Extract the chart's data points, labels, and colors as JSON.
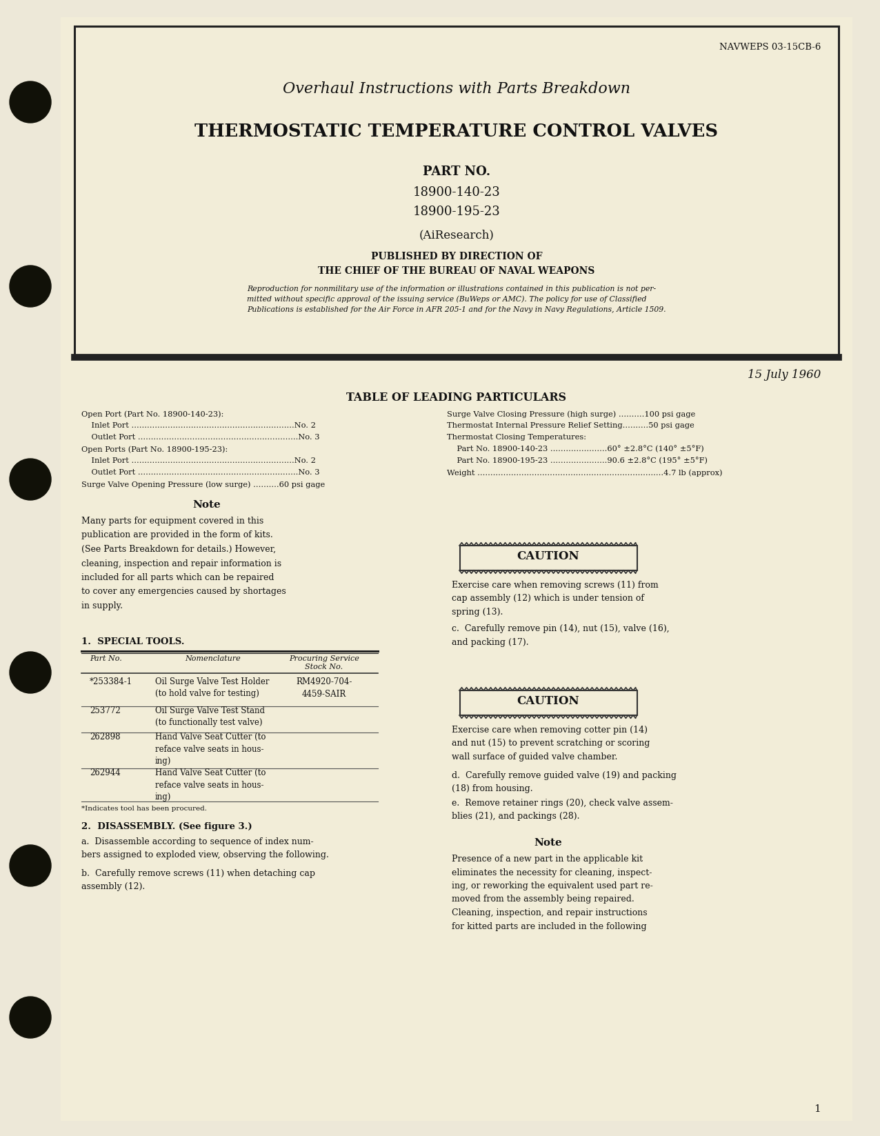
{
  "page_bg": "#ede8d8",
  "doc_bg": "#f2edd8",
  "navweps": "NAVWEPS 03-15CB-6",
  "title_line1": "Overhaul Instructions with Parts Breakdown",
  "title_line2": "THERMOSTATIC TEMPERATURE CONTROL VALVES",
  "part_no_label": "PART NO.",
  "part1": "18900-140-23",
  "part2": "18900-195-23",
  "airesearch": "(AiResearch)",
  "published_line1": "PUBLISHED BY DIRECTION OF",
  "published_line2": "THE CHIEF OF THE BUREAU OF NAVAL WEAPONS",
  "reproduction_text": "Reproduction for nonmilitary use of the information or illustrations contained in this publication is not per-\nmitted without specific approval of the issuing service (BuWeps or AMC). The policy for use of Classified\nPublications is established for the Air Force in AFR 205-1 and for the Navy in Navy Regulations, Article 1509.",
  "date": "15 July 1960",
  "table_title": "TABLE OF LEADING PARTICULARS",
  "left_particulars": [
    "Open Port (Part No. 18900-140-23):",
    "    Inlet Port ...............................................................No. 2",
    "    Outlet Port ..............................................................No. 3",
    "Open Ports (Part No. 18900-195-23):",
    "    Inlet Port ...............................................................No. 2",
    "    Outlet Port ..............................................................No. 3",
    "Surge Valve Opening Pressure (low surge) ..........60 psi gage"
  ],
  "right_particulars": [
    "Surge Valve Closing Pressure (high surge) ..........100 psi gage",
    "Thermostat Internal Pressure Relief Setting..........50 psi gage",
    "Thermostat Closing Temperatures:",
    "    Part No. 18900-140-23 ......................60° ±2.8°C (140° ±5°F)",
    "    Part No. 18900-195-23 ......................90.6 ±2.8°C (195° ±5°F)",
    "Weight ........................................................................4.7 lb (approx)"
  ],
  "note_title": "Note",
  "note_text": "Many parts for equipment covered in this\npublication are provided in the form of kits.\n(See Parts Breakdown for details.) However,\ncleaning, inspection and repair information is\nincluded for all parts which can be repaired\nto cover any emergencies caused by shortages\nin supply.",
  "special_tools_title": "1.  SPECIAL TOOLS.",
  "table_headers": [
    "Part No.",
    "Nomenclature",
    "Procuring Service\nStock No."
  ],
  "tools_data": [
    [
      "*253384-1",
      "Oil Surge Valve Test Holder\n(to hold valve for testing)",
      "RM4920-704-\n4459-SAIR"
    ],
    [
      "253772",
      "Oil Surge Valve Test Stand\n(to functionally test valve)",
      ""
    ],
    [
      "262898",
      "Hand Valve Seat Cutter (to\nreface valve seats in hous-\ning)",
      ""
    ],
    [
      "262944",
      "Hand Valve Seat Cutter (to\nreface valve seats in hous-\ning)",
      ""
    ]
  ],
  "footnote": "*Indicates tool has been procured.",
  "disassembly_title": "2.  DISASSEMBLY. (See figure 3.)",
  "disassembly_a": "a.  Disassemble according to sequence of index num-\nbers assigned to exploded view, observing the following.",
  "disassembly_b": "b.  Carefully remove screws (11) when detaching cap\nassembly (12).",
  "caution1_text": "Exercise care when removing screws (11) from\ncap assembly (12) which is under tension of\nspring (13).",
  "caution2_text": "Exercise care when removing cotter pin (14)\nand nut (15) to prevent scratching or scoring\nwall surface of guided valve chamber.",
  "dis_c": "c.  Carefully remove pin (14), nut (15), valve (16),\nand packing (17).",
  "dis_d": "d.  Carefully remove guided valve (19) and packing\n(18) from housing.",
  "dis_e": "e.  Remove retainer rings (20), check valve assem-\nblies (21), and packings (28).",
  "right_note_title": "Note",
  "right_note_text": "Presence of a new part in the applicable kit\neliminates the necessity for cleaning, inspect-\ning, or reworking the equivalent used part re-\nmoved from the assembly being repaired.\nCleaning, inspection, and repair instructions\nfor kitted parts are included in the following",
  "page_number": "1",
  "text_color": "#111111",
  "hole_color": "#111108"
}
